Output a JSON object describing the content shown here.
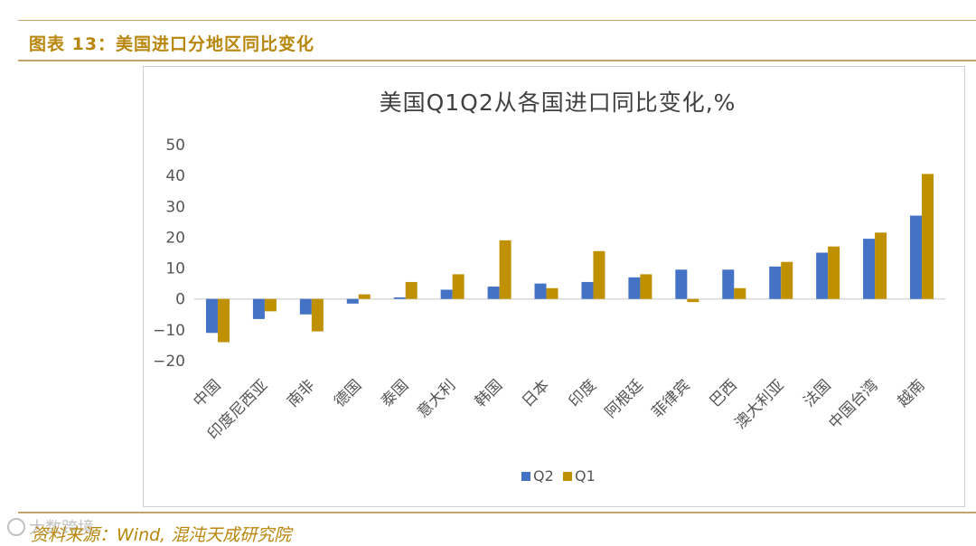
{
  "header": {
    "figure_title": "图表 13：美国进口分地区同比变化"
  },
  "source": {
    "text": "资料来源：Wind, 混沌天成研究院"
  },
  "watermark": {
    "text": "大数跨境"
  },
  "colors": {
    "q2": "#4472c4",
    "q1": "#bf9000",
    "accent": "#b8860b",
    "rule": "#c3a46a"
  },
  "chart_data": {
    "type": "bar",
    "title": "美国Q1Q2从各国进口同比变化,%",
    "xlabel": "",
    "ylabel": "",
    "ylim": [
      -20,
      50
    ],
    "yticks": [
      50,
      40,
      30,
      20,
      10,
      0,
      -10,
      -20
    ],
    "categories": [
      "中国",
      "印度尼西亚",
      "南非",
      "德国",
      "泰国",
      "意大利",
      "韩国",
      "日本",
      "印度",
      "阿根廷",
      "菲律宾",
      "巴西",
      "澳大利亚",
      "法国",
      "中国台湾",
      "越南"
    ],
    "series": [
      {
        "name": "Q2",
        "values": [
          -11,
          -6.5,
          -5,
          -1.5,
          0.5,
          3,
          4,
          5,
          5.5,
          7,
          9.5,
          9.5,
          10.5,
          15,
          19.5,
          27
        ]
      },
      {
        "name": "Q1",
        "values": [
          -14,
          -4,
          -10.5,
          1.5,
          5.5,
          8,
          19,
          3.5,
          15.5,
          8,
          -1,
          3.5,
          12,
          17,
          21.5,
          40.5
        ]
      }
    ],
    "legend_position": "bottom"
  }
}
